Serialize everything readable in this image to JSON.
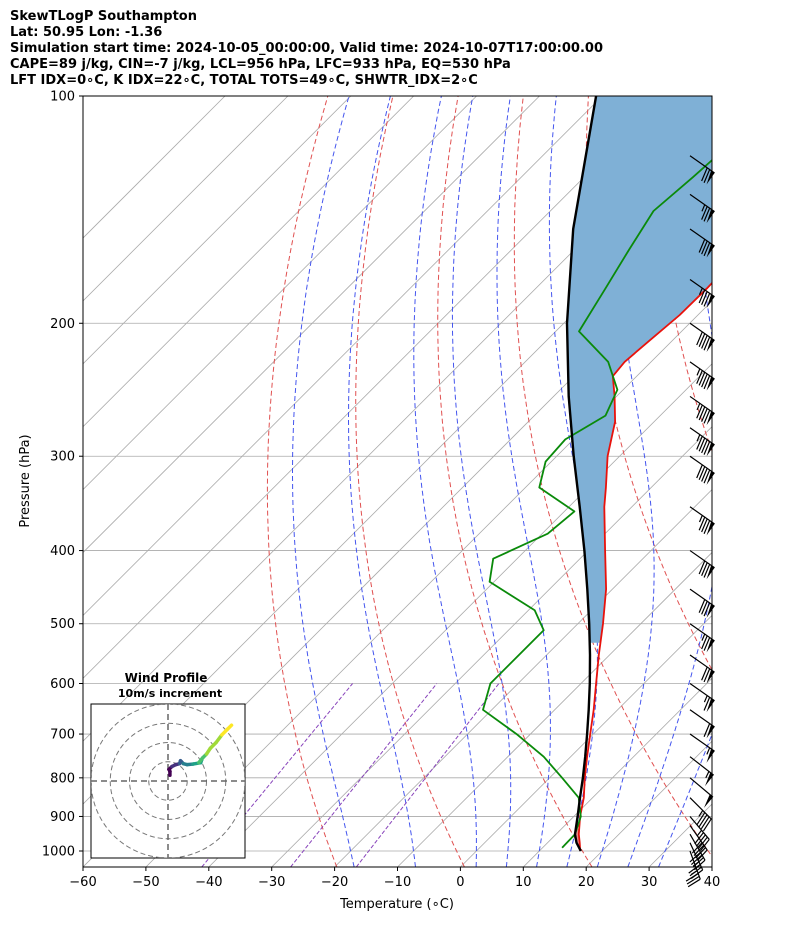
{
  "header": {
    "line1": "SkewTLogP Southampton",
    "line2": "Lat: 50.95   Lon: -1.36",
    "line3": "Simulation start time: 2024-10-05_00:00:00, Valid time: 2024-10-07T17:00:00.00",
    "line4": "CAPE=89 j/kg, CIN=-7 j/kg, LCL=956 hPa, LFC=933 hPa, EQ=530 hPa",
    "line5": "LFT IDX=0∘C, K IDX=22∘C, TOTAL TOTS=49∘C, SHWTR_IDX=2∘C"
  },
  "chart_data": {
    "type": "line",
    "subtype": "skew-t log-p",
    "xlabel": "Temperature (∘C)",
    "ylabel": "Pressure (hPa)",
    "xlim": [
      -60,
      40
    ],
    "ylim": [
      1050,
      100
    ],
    "x_ticks": [
      -60,
      -50,
      -40,
      -30,
      -20,
      -10,
      0,
      10,
      20,
      30,
      40
    ],
    "y_ticks": [
      1000,
      900,
      800,
      700,
      600,
      500,
      400,
      300,
      200,
      100
    ],
    "colors": {
      "temperature": "#e8120c",
      "dewpoint": "#0a8a0a",
      "parcel": "#000000",
      "cape_fill": "#7fb0d6",
      "cin_fill": "#e88a8a",
      "dry_adiabat": "#e05050",
      "moist_adiabat": "#4455ee",
      "mixing_ratio": "#8844bb",
      "isotherm": "#aaaaaa"
    },
    "series": [
      {
        "name": "Temperature",
        "points": [
          {
            "p": 1000,
            "t": 16.5
          },
          {
            "p": 975,
            "t": 15.1
          },
          {
            "p": 950,
            "t": 13.6
          },
          {
            "p": 900,
            "t": 11.0
          },
          {
            "p": 850,
            "t": 8.6
          },
          {
            "p": 800,
            "t": 5.6
          },
          {
            "p": 750,
            "t": 2.6
          },
          {
            "p": 700,
            "t": -0.5
          },
          {
            "p": 650,
            "t": -3.8
          },
          {
            "p": 600,
            "t": -7.6
          },
          {
            "p": 550,
            "t": -11.7
          },
          {
            "p": 500,
            "t": -16.0
          },
          {
            "p": 450,
            "t": -21.0
          },
          {
            "p": 400,
            "t": -27.3
          },
          {
            "p": 350,
            "t": -34.4
          },
          {
            "p": 330,
            "t": -37.2
          },
          {
            "p": 300,
            "t": -41.9
          },
          {
            "p": 270,
            "t": -46.2
          },
          {
            "p": 250,
            "t": -50.3
          },
          {
            "p": 235,
            "t": -53.8
          },
          {
            "p": 225,
            "t": -54.2
          },
          {
            "p": 210,
            "t": -53.6
          },
          {
            "p": 195,
            "t": -52.9
          },
          {
            "p": 180,
            "t": -52.8
          },
          {
            "p": 165,
            "t": -53.0
          },
          {
            "p": 150,
            "t": -54.0
          },
          {
            "p": 135,
            "t": -55.6
          },
          {
            "p": 120,
            "t": -57.0
          },
          {
            "p": 110,
            "t": -58.0
          },
          {
            "p": 100,
            "t": -59.0
          }
        ]
      },
      {
        "name": "Dewpoint",
        "points": [
          {
            "p": 990,
            "t": 13.1
          },
          {
            "p": 950,
            "t": 13.0
          },
          {
            "p": 900,
            "t": 11.1
          },
          {
            "p": 850,
            "t": 7.8
          },
          {
            "p": 800,
            "t": 2.0
          },
          {
            "p": 750,
            "t": -4.3
          },
          {
            "p": 700,
            "t": -12.2
          },
          {
            "p": 650,
            "t": -21.4
          },
          {
            "p": 600,
            "t": -24.4
          },
          {
            "p": 550,
            "t": -24.4
          },
          {
            "p": 510,
            "t": -24.4
          },
          {
            "p": 480,
            "t": -29.0
          },
          {
            "p": 440,
            "t": -40.7
          },
          {
            "p": 410,
            "t": -43.8
          },
          {
            "p": 380,
            "t": -39.1
          },
          {
            "p": 355,
            "t": -38.4
          },
          {
            "p": 330,
            "t": -47.8
          },
          {
            "p": 305,
            "t": -50.9
          },
          {
            "p": 285,
            "t": -51.3
          },
          {
            "p": 265,
            "t": -48.7
          },
          {
            "p": 245,
            "t": -50.9
          },
          {
            "p": 225,
            "t": -56.8
          },
          {
            "p": 205,
            "t": -66.3
          },
          {
            "p": 180,
            "t": -68.9
          },
          {
            "p": 160,
            "t": -71.3
          },
          {
            "p": 142,
            "t": -73.6
          },
          {
            "p": 128,
            "t": -72.7
          },
          {
            "p": 115,
            "t": -72.0
          },
          {
            "p": 100,
            "t": -72.9
          }
        ]
      },
      {
        "name": "Parcel",
        "points": [
          {
            "p": 1000,
            "t": 16.6
          },
          {
            "p": 975,
            "t": 14.6
          },
          {
            "p": 950,
            "t": 13.0
          },
          {
            "p": 900,
            "t": 10.6
          },
          {
            "p": 850,
            "t": 8.0
          },
          {
            "p": 800,
            "t": 5.3
          },
          {
            "p": 750,
            "t": 2.3
          },
          {
            "p": 700,
            "t": -1.0
          },
          {
            "p": 650,
            "t": -4.6
          },
          {
            "p": 600,
            "t": -8.6
          },
          {
            "p": 550,
            "t": -13.1
          },
          {
            "p": 500,
            "t": -18.2
          },
          {
            "p": 450,
            "t": -24.0
          },
          {
            "p": 400,
            "t": -30.6
          },
          {
            "p": 350,
            "t": -38.3
          },
          {
            "p": 300,
            "t": -47.3
          },
          {
            "p": 250,
            "t": -57.6
          },
          {
            "p": 200,
            "t": -69.5
          },
          {
            "p": 150,
            "t": -83.5
          },
          {
            "p": 100,
            "t": -101.0
          }
        ]
      }
    ],
    "wind_barbs": [
      {
        "p": 1000,
        "dir": 200,
        "spd": 35
      },
      {
        "p": 975,
        "dir": 205,
        "spd": 38
      },
      {
        "p": 950,
        "dir": 210,
        "spd": 40
      },
      {
        "p": 925,
        "dir": 215,
        "spd": 42
      },
      {
        "p": 900,
        "dir": 220,
        "spd": 45
      },
      {
        "p": 850,
        "dir": 225,
        "spd": 45
      },
      {
        "p": 800,
        "dir": 230,
        "spd": 50
      },
      {
        "p": 750,
        "dir": 232,
        "spd": 55
      },
      {
        "p": 700,
        "dir": 235,
        "spd": 55
      },
      {
        "p": 650,
        "dir": 235,
        "spd": 60
      },
      {
        "p": 600,
        "dir": 235,
        "spd": 65
      },
      {
        "p": 550,
        "dir": 235,
        "spd": 70
      },
      {
        "p": 500,
        "dir": 235,
        "spd": 75
      },
      {
        "p": 450,
        "dir": 235,
        "spd": 80
      },
      {
        "p": 400,
        "dir": 235,
        "spd": 80
      },
      {
        "p": 350,
        "dir": 235,
        "spd": 85
      },
      {
        "p": 300,
        "dir": 235,
        "spd": 90
      },
      {
        "p": 275,
        "dir": 235,
        "spd": 95
      },
      {
        "p": 250,
        "dir": 235,
        "spd": 95
      },
      {
        "p": 225,
        "dir": 235,
        "spd": 95
      },
      {
        "p": 200,
        "dir": 235,
        "spd": 90
      },
      {
        "p": 175,
        "dir": 235,
        "spd": 85
      },
      {
        "p": 150,
        "dir": 235,
        "spd": 80
      },
      {
        "p": 135,
        "dir": 235,
        "spd": 75
      },
      {
        "p": 120,
        "dir": 235,
        "spd": 70
      }
    ],
    "inset": {
      "title": "Wind Profile",
      "subtitle": "10m/s increment"
    },
    "hodograph": {
      "range": 40,
      "rings": [
        10,
        20,
        30,
        40
      ],
      "points": [
        {
          "u": 1,
          "v": 3
        },
        {
          "u": 1,
          "v": 5
        },
        {
          "u": 0.5,
          "v": 6
        },
        {
          "u": 2,
          "v": 7.5
        },
        {
          "u": 4,
          "v": 8.5
        },
        {
          "u": 6,
          "v": 9
        },
        {
          "u": 6.5,
          "v": 10.5
        },
        {
          "u": 7,
          "v": 10
        },
        {
          "u": 8,
          "v": 9
        },
        {
          "u": 10,
          "v": 8.5
        },
        {
          "u": 13,
          "v": 8.8
        },
        {
          "u": 17,
          "v": 9.5
        },
        {
          "u": 17.5,
          "v": 11
        },
        {
          "u": 16,
          "v": 9.5
        },
        {
          "u": 18,
          "v": 12
        },
        {
          "u": 20,
          "v": 14
        },
        {
          "u": 22,
          "v": 17
        },
        {
          "u": 25,
          "v": 20
        },
        {
          "u": 28,
          "v": 24
        },
        {
          "u": 31,
          "v": 27
        },
        {
          "u": 33,
          "v": 29
        }
      ]
    }
  }
}
